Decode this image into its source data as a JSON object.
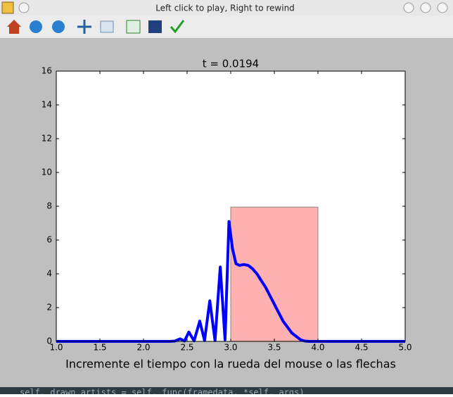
{
  "window": {
    "title": "Left click to play, Right to rewind"
  },
  "terminal_text": "self._drawn_artists = self._func(framedata, *self._args)",
  "chart_data": {
    "type": "line",
    "title": "t = 0.0194",
    "x_label": "Incremente el tiempo con la rueda del mouse o las flechas",
    "x": [
      1.0,
      2.3,
      2.36,
      2.42,
      2.47,
      2.52,
      2.58,
      2.645,
      2.7,
      2.76,
      2.82,
      2.88,
      2.935,
      2.98,
      3.02,
      3.06,
      3.1,
      3.15,
      3.2,
      3.25,
      3.3,
      3.4,
      3.5,
      3.6,
      3.7,
      3.8,
      3.85,
      3.9,
      5.0
    ],
    "series": [
      {
        "color": "#0000ff",
        "values": [
          0,
          0,
          0.02,
          0.15,
          0.02,
          0.55,
          0.03,
          1.2,
          0.05,
          2.4,
          0.05,
          4.4,
          0.1,
          7.1,
          5.5,
          4.6,
          4.5,
          4.55,
          4.5,
          4.3,
          4.0,
          3.2,
          2.2,
          1.2,
          0.5,
          0.1,
          0.02,
          0,
          0
        ]
      }
    ],
    "barrier": {
      "x_start": 3.0,
      "x_end": 4.0,
      "height": 7.95,
      "color": "#ffb0b0"
    },
    "xlim": [
      1.0,
      5.0
    ],
    "xticks": [
      {
        "value": 1.0,
        "label": "1.0"
      },
      {
        "value": 1.5,
        "label": "1.5"
      },
      {
        "value": 2.0,
        "label": "2.0"
      },
      {
        "value": 2.5,
        "label": "2.5"
      },
      {
        "value": 3.0,
        "label": "3.0"
      },
      {
        "value": 3.5,
        "label": "3.5"
      },
      {
        "value": 4.0,
        "label": "4.0"
      },
      {
        "value": 4.5,
        "label": "4.5"
      },
      {
        "value": 5.0,
        "label": "5.0"
      }
    ],
    "ylim": [
      0,
      16
    ],
    "yticks": [
      0,
      2,
      4,
      6,
      8,
      10,
      12,
      14,
      16
    ],
    "grid": false
  }
}
